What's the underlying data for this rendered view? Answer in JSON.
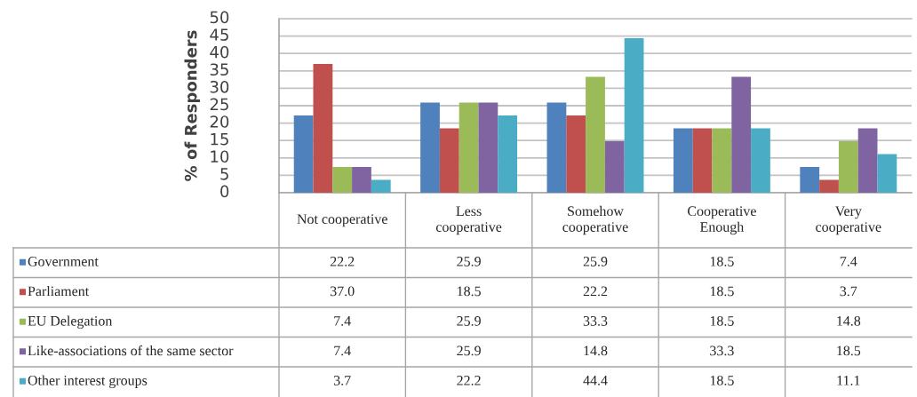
{
  "chart_data": {
    "type": "bar",
    "ylabel": "% of Responders",
    "categories": [
      "Not cooperative",
      "Less\ncooperative",
      "Somehow\ncooperative",
      "Cooperative\nEnough",
      "Very\ncooperative"
    ],
    "series": [
      {
        "name": "Government",
        "color": "#4f81bd",
        "values": [
          22.2,
          25.9,
          25.9,
          18.5,
          7.4
        ],
        "value_labels": [
          "22.2",
          "25.9",
          "25.9",
          "18.5",
          "7.4"
        ]
      },
      {
        "name": "Parliament",
        "color": "#c0504d",
        "values": [
          37.0,
          18.5,
          22.2,
          18.5,
          3.7
        ],
        "value_labels": [
          "37.0",
          "18.5",
          "22.2",
          "18.5",
          "3.7"
        ]
      },
      {
        "name": "EU Delegation",
        "color": "#9bbb59",
        "values": [
          7.4,
          25.9,
          33.3,
          18.5,
          14.8
        ],
        "value_labels": [
          "7.4",
          "25.9",
          "33.3",
          "18.5",
          "14.8"
        ]
      },
      {
        "name": "Like-associations of the same sector",
        "color": "#8064a2",
        "values": [
          7.4,
          25.9,
          14.8,
          33.3,
          18.5
        ],
        "value_labels": [
          "7.4",
          "25.9",
          "14.8",
          "33.3",
          "18.5"
        ]
      },
      {
        "name": "Other interest groups",
        "color": "#4bacc6",
        "values": [
          3.7,
          22.2,
          44.4,
          18.5,
          11.1
        ],
        "value_labels": [
          "3.7",
          "22.2",
          "44.4",
          "18.5",
          "11.1"
        ]
      }
    ],
    "ylim": [
      0,
      50
    ],
    "yticks": [
      0,
      5,
      10,
      15,
      20,
      25,
      30,
      35,
      40,
      45,
      50
    ],
    "grid": "y",
    "legend": "bottom"
  }
}
